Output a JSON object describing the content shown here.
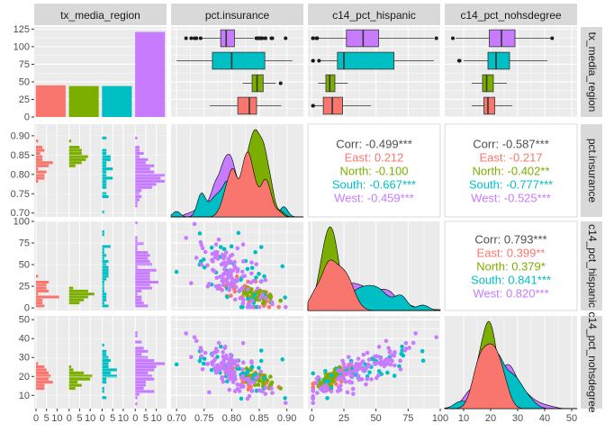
{
  "variables": [
    "tx_media_region",
    "pct.insurance",
    "c14_pct_hispanic",
    "c14_pct_nohsdegree"
  ],
  "regions": [
    "East",
    "North",
    "South",
    "West"
  ],
  "colors": {
    "East": "#F8766D",
    "North": "#7CAE00",
    "South": "#00BFC4",
    "West": "#C77CFF"
  },
  "chart_data": {
    "type": "scatter",
    "description_type": "ggpairs scatterplot matrix",
    "region_counts": {
      "East": 45,
      "North": 44,
      "South": 44,
      "West": 121
    },
    "axes": {
      "tx_media_region": {
        "ticks": [
          0,
          25,
          50,
          75,
          100,
          125
        ],
        "range": [
          0,
          128
        ]
      },
      "pct.insurance": {
        "ticks": [
          0.7,
          0.75,
          0.8,
          0.85,
          0.9
        ],
        "tick_labels": [
          "0.70",
          "0.75",
          "0.80",
          "0.85",
          "0.90"
        ],
        "range": [
          0.69,
          0.93
        ]
      },
      "c14_pct_hispanic": {
        "ticks": [
          0,
          25,
          50,
          75,
          100
        ],
        "range": [
          -3,
          100
        ]
      },
      "c14_pct_nohsdegree": {
        "ticks": [
          10,
          20,
          30,
          40,
          50
        ],
        "range": [
          3,
          52
        ]
      },
      "count_small": {
        "ticks": [
          0,
          5,
          10
        ],
        "tick_labels": [
          "0",
          "5",
          "10"
        ]
      }
    },
    "boxplots": {
      "pct.insurance": {
        "East": {
          "q1": 0.811,
          "median": 0.832,
          "q3": 0.845,
          "lo": 0.76,
          "hi": 0.89
        },
        "North": {
          "q1": 0.837,
          "median": 0.846,
          "q3": 0.857,
          "lo": 0.82,
          "hi": 0.88
        },
        "South": {
          "q1": 0.765,
          "median": 0.8,
          "q3": 0.86,
          "lo": 0.7,
          "hi": 0.91
        },
        "West": {
          "q1": 0.78,
          "median": 0.79,
          "q3": 0.805,
          "lo": 0.745,
          "hi": 0.84
        }
      },
      "c14_pct_hispanic": {
        "East": {
          "q1": 9,
          "median": 16,
          "q3": 24,
          "lo": 2,
          "hi": 46
        },
        "North": {
          "q1": 11,
          "median": 14,
          "q3": 18,
          "lo": 5,
          "hi": 28
        },
        "South": {
          "q1": 20,
          "median": 25,
          "q3": 64,
          "lo": 7,
          "hi": 95
        },
        "West": {
          "q1": 27,
          "median": 40,
          "q3": 52,
          "lo": 5,
          "hi": 95
        }
      },
      "c14_pct_nohsdegree": {
        "East": {
          "q1": 17.5,
          "median": 19,
          "q3": 21.5,
          "lo": 13,
          "hi": 28
        },
        "North": {
          "q1": 17,
          "median": 18.5,
          "q3": 21,
          "lo": 13,
          "hi": 26
        },
        "South": {
          "q1": 19,
          "median": 22,
          "q3": 27,
          "lo": 10,
          "hi": 41
        },
        "West": {
          "q1": 19.5,
          "median": 24,
          "q3": 29,
          "lo": 7,
          "hi": 42
        }
      }
    },
    "correlations": {
      "insurance_vs_hispanic": {
        "Corr": "-0.499***",
        "East": "0.212",
        "North": "-0.100",
        "South": "-0.667***",
        "West": "-0.459***"
      },
      "insurance_vs_nohsdegree": {
        "Corr": "-0.587***",
        "East": "-0.217",
        "North": "-0.402**",
        "South": "-0.777***",
        "West": "-0.525***"
      },
      "hispanic_vs_nohsdegree": {
        "Corr": "0.793***",
        "East": "0.399**",
        "North": "0.379*",
        "South": "0.841***",
        "West": "0.820***"
      }
    },
    "corr_labels": {
      "Corr": "Corr:",
      "East": "East:",
      "North": "North:",
      "South": "South:",
      "West": "West:"
    }
  }
}
